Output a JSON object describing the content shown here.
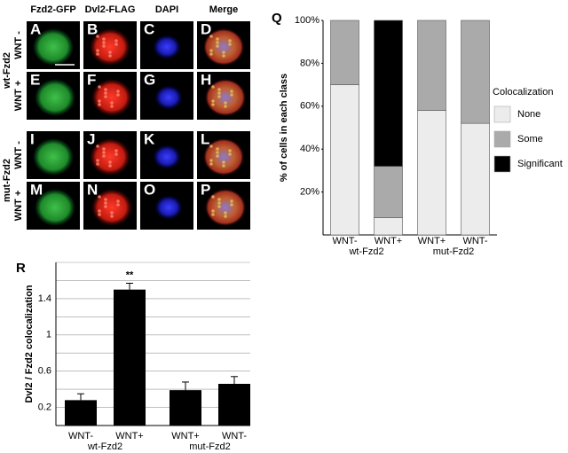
{
  "header": {
    "columns": [
      "Fzd2-GFP",
      "Dvl2-FLAG",
      "DAPI",
      "Merge"
    ]
  },
  "row_groups": [
    {
      "label": "wt-Fzd2",
      "rows": [
        "WNT -",
        "WNT +"
      ]
    },
    {
      "label": "mut-Fzd2",
      "rows": [
        "WNT -",
        "WNT +"
      ]
    }
  ],
  "panels": [
    "A",
    "B",
    "C",
    "D",
    "E",
    "F",
    "G",
    "H",
    "I",
    "J",
    "K",
    "L",
    "M",
    "N",
    "O",
    "P"
  ],
  "chart_data": [
    {
      "type": "stacked_bar",
      "panel_label": "Q",
      "y_label": "% of cells in each class",
      "categories": [
        "WNT-",
        "WNT+",
        "WNT+",
        "WNT-"
      ],
      "group_labels": [
        "wt-Fzd2",
        "mut-Fzd2"
      ],
      "series": [
        {
          "name": "None",
          "color": "#ececec",
          "values": [
            70,
            8,
            58,
            52
          ]
        },
        {
          "name": "Some",
          "color": "#aaaaaa",
          "values": [
            30,
            24,
            42,
            48
          ]
        },
        {
          "name": "Significant",
          "color": "#000000",
          "values": [
            0,
            68,
            0,
            0
          ]
        }
      ],
      "ylim": [
        0,
        100
      ],
      "yticks": [
        {
          "value": 20,
          "label": "20%"
        },
        {
          "value": 40,
          "label": "40%"
        },
        {
          "value": 60,
          "label": "60%"
        },
        {
          "value": 80,
          "label": "80%"
        },
        {
          "value": 100,
          "label": "100%"
        }
      ],
      "legend_title": "Colocalization",
      "legend": "right"
    },
    {
      "type": "bar",
      "panel_label": "R",
      "y_label": "Dvl2 / Fzd2 colocalization",
      "categories": [
        "WNT-",
        "WNT+",
        "WNT+",
        "WNT-"
      ],
      "group_labels": [
        "wt-Fzd2",
        "mut-Fzd2"
      ],
      "values": [
        0.28,
        1.5,
        0.39,
        0.46
      ],
      "errors": [
        0.07,
        0.07,
        0.09,
        0.08
      ],
      "value_annotations": [
        null,
        "**",
        null,
        null
      ],
      "color": "#000000",
      "ylim": [
        0,
        1.8
      ],
      "yticks": [
        0.2,
        0.6,
        1.0,
        1.4
      ],
      "minor_yticks": [
        0.4,
        0.8,
        1.2,
        1.6,
        1.8
      ],
      "grid": true
    }
  ]
}
